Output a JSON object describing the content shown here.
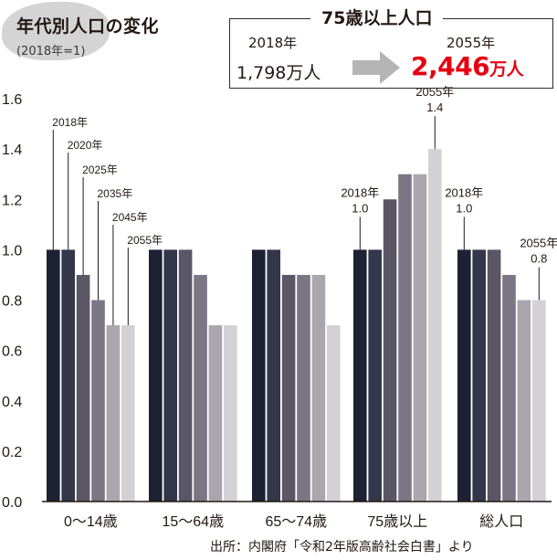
{
  "title": "年代別人口の変化",
  "subtitle": "(2018年=1)",
  "callout": {
    "title": "75歳以上人口",
    "from_year": "2018年",
    "from_value": "1,798万人",
    "to_year": "2055年",
    "to_value_number": "2,446",
    "to_value_unit": "万人"
  },
  "source": "出所：内閣府「令和2年版高齢社会白書」より",
  "chart_data": {
    "type": "bar",
    "categories": [
      "0〜14歳",
      "15〜64歳",
      "65〜74歳",
      "75歳以上",
      "総人口"
    ],
    "series": [
      {
        "name": "2018年",
        "color": "#1e2133",
        "values": [
          1.0,
          1.0,
          1.0,
          1.0,
          1.0
        ]
      },
      {
        "name": "2020年",
        "color": "#34364a",
        "values": [
          1.0,
          1.0,
          1.0,
          1.0,
          1.0
        ]
      },
      {
        "name": "2025年",
        "color": "#5a5666",
        "values": [
          0.9,
          1.0,
          0.9,
          1.2,
          1.0
        ]
      },
      {
        "name": "2035年",
        "color": "#7a7683",
        "values": [
          0.8,
          0.9,
          0.9,
          1.3,
          0.9
        ]
      },
      {
        "name": "2045年",
        "color": "#a9a6ae",
        "values": [
          0.7,
          0.7,
          0.9,
          1.3,
          0.8
        ]
      },
      {
        "name": "2055年",
        "color": "#d3d1d5",
        "values": [
          0.7,
          0.7,
          0.7,
          1.4,
          0.8
        ]
      }
    ],
    "ylim": [
      0,
      1.6
    ],
    "yticks": [
      "0.0",
      "0.2",
      "0.4",
      "0.6",
      "0.8",
      "1.0",
      "1.2",
      "1.4",
      "1.6"
    ],
    "year_labels": [
      "2018年",
      "2020年",
      "2025年",
      "2035年",
      "2045年",
      "2055年"
    ],
    "annotations": [
      {
        "group": 3,
        "series": 0,
        "year": "2018年",
        "value": "1.0"
      },
      {
        "group": 3,
        "series": 5,
        "year": "2055年",
        "value": "1.4"
      },
      {
        "group": 4,
        "series": 0,
        "year": "2018年",
        "value": "1.0"
      },
      {
        "group": 4,
        "series": 5,
        "year": "2055年",
        "value": "0.8"
      }
    ]
  }
}
